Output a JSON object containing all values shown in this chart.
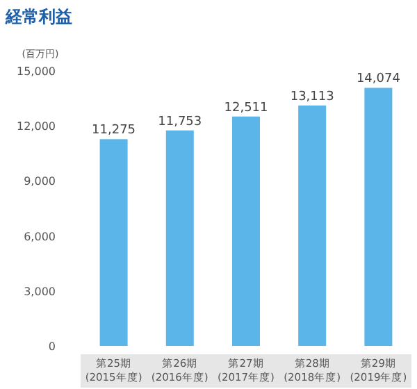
{
  "chart_data": {
    "type": "bar",
    "title": "経常利益",
    "ylabel": "(百万円)",
    "categories": [
      "第25期\n(2015年度)",
      "第26期\n(2016年度)",
      "第27期\n(2017年度)",
      "第28期\n(2018年度)",
      "第29期\n(2019年度)"
    ],
    "values": [
      11275,
      11753,
      12511,
      13113,
      14074
    ],
    "color": "#5bb5e8",
    "ylim": [
      0,
      15000
    ],
    "yticks": [
      {
        "value": 0,
        "label": "0"
      },
      {
        "value": 3000,
        "label": "3,000"
      },
      {
        "value": 6000,
        "label": "6,000"
      },
      {
        "value": 9000,
        "label": "9,000"
      },
      {
        "value": 12000,
        "label": "12,000"
      },
      {
        "value": 15000,
        "label": "15,000"
      }
    ],
    "value_labels": [
      "11,275",
      "11,753",
      "12,511",
      "13,113",
      "14,074"
    ],
    "grid": false
  }
}
